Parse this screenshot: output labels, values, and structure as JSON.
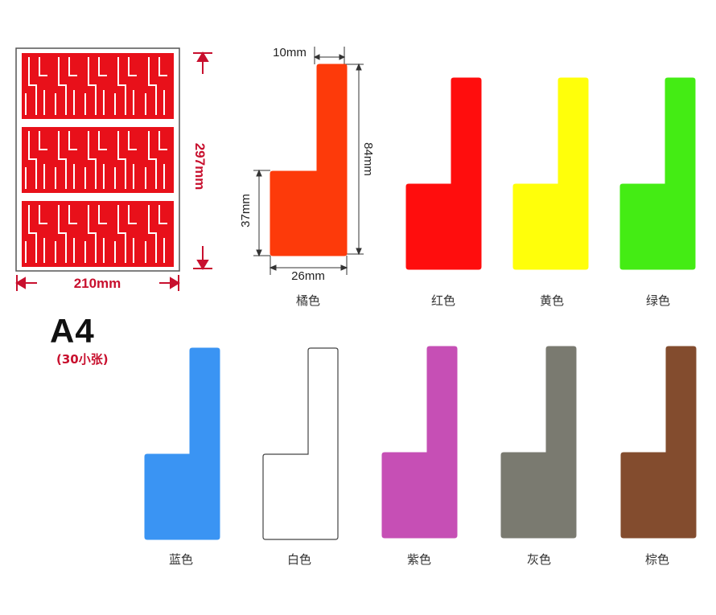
{
  "sheet": {
    "width_label": "210mm",
    "height_label": "297mm",
    "fill_color": "#e8101a",
    "format_label": "A4",
    "count_label": "(30小张)"
  },
  "dimensions": {
    "tab_width": "10mm",
    "total_height": "84mm",
    "body_height": "37mm",
    "body_width": "26mm"
  },
  "colors": [
    {
      "label": "橘色",
      "hex": "#fd3a0a"
    },
    {
      "label": "红色",
      "hex": "#ff0d0d"
    },
    {
      "label": "黄色",
      "hex": "#ffff0a"
    },
    {
      "label": "绿色",
      "hex": "#44ec14"
    },
    {
      "label": "蓝色",
      "hex": "#3a94f3"
    },
    {
      "label": "白色",
      "hex": "#ffffff"
    },
    {
      "label": "紫色",
      "hex": "#c64fb5"
    },
    {
      "label": "灰色",
      "hex": "#7a7a70"
    },
    {
      "label": "棕色",
      "hex": "#834c2e"
    }
  ]
}
